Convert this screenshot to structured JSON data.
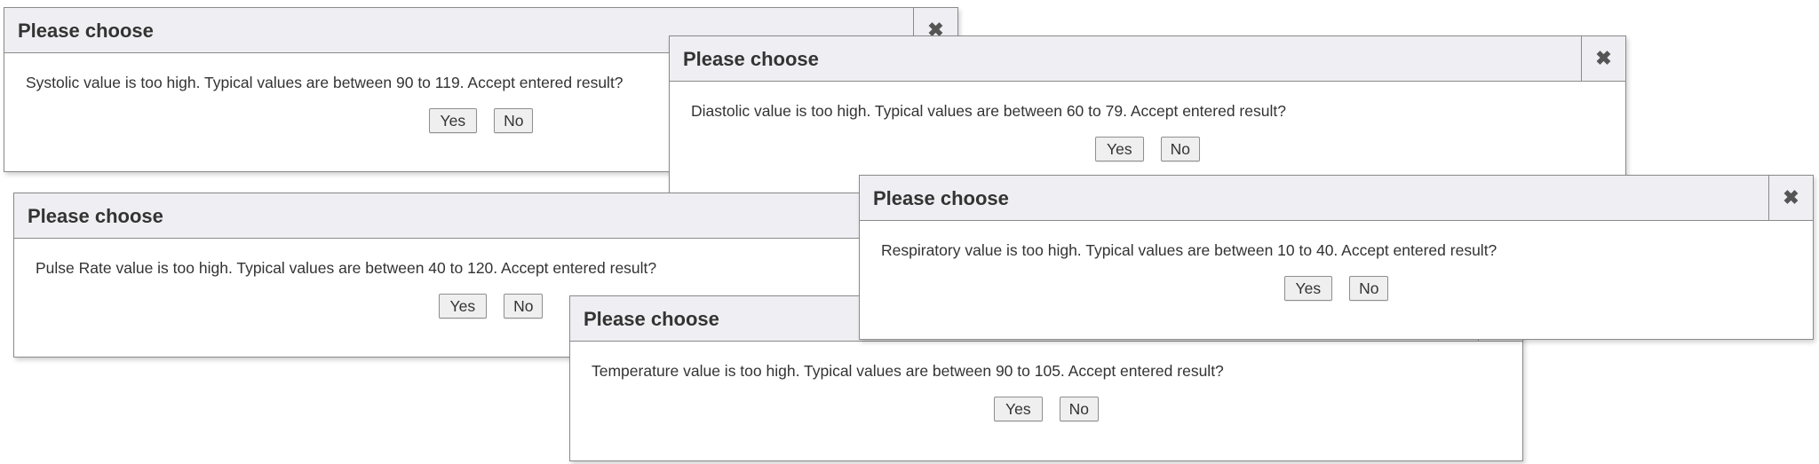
{
  "dialogs": [
    {
      "id": "systolic",
      "title": "Please choose",
      "message": "Systolic value is too high. Typical values are between 90 to 119. Accept entered result?",
      "yes": "Yes",
      "no": "No",
      "close_icon": "close-icon"
    },
    {
      "id": "diastolic",
      "title": "Please choose",
      "message": "Diastolic value is too high. Typical values are between 60 to 79. Accept entered result?",
      "yes": "Yes",
      "no": "No",
      "close_icon": "close-icon"
    },
    {
      "id": "pulse-rate",
      "title": "Please choose",
      "message": "Pulse Rate value is too high. Typical values are between 40 to 120. Accept entered result?",
      "yes": "Yes",
      "no": "No",
      "close_icon": "close-icon"
    },
    {
      "id": "temperature",
      "title": "Please choose",
      "message": "Temperature value is too high. Typical values are between 90 to 105. Accept entered result?",
      "yes": "Yes",
      "no": "No",
      "close_icon": "close-icon"
    },
    {
      "id": "respiratory",
      "title": "Please choose",
      "message": "Respiratory value is too high. Typical values are between 10 to 40. Accept entered result?",
      "yes": "Yes",
      "no": "No",
      "close_icon": "close-icon"
    }
  ],
  "close_glyph": "✖"
}
